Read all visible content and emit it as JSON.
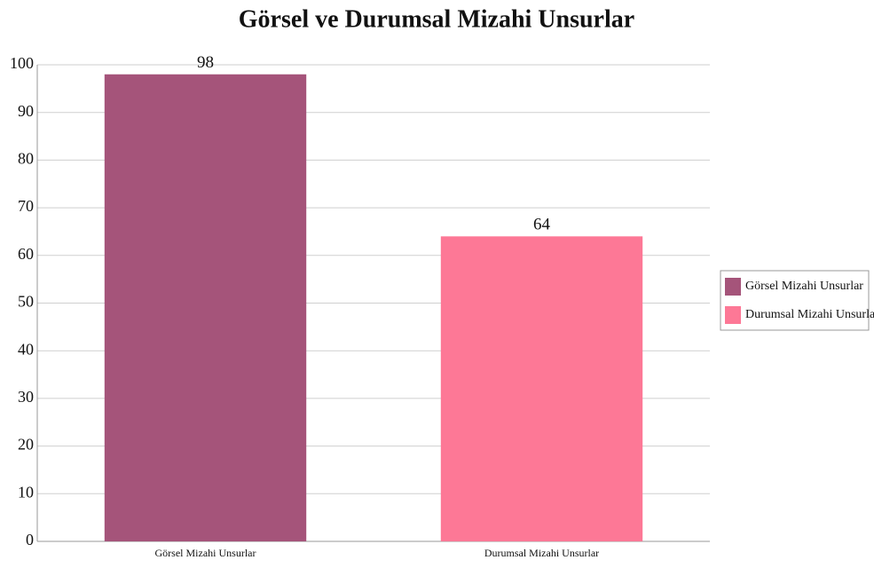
{
  "chart_data": {
    "type": "bar",
    "title": "Görsel ve Durumsal Mizahi Unsurlar",
    "categories": [
      "Görsel Mizahi Unsurlar",
      "Durumsal Mizahi Unsurlar"
    ],
    "values": [
      98,
      64
    ],
    "colors": [
      "#a5547a",
      "#fd7896"
    ],
    "ylim": [
      0,
      100
    ],
    "yticks": [
      0,
      10,
      20,
      30,
      40,
      50,
      60,
      70,
      80,
      90,
      100
    ],
    "grid": true,
    "legend": "right"
  }
}
